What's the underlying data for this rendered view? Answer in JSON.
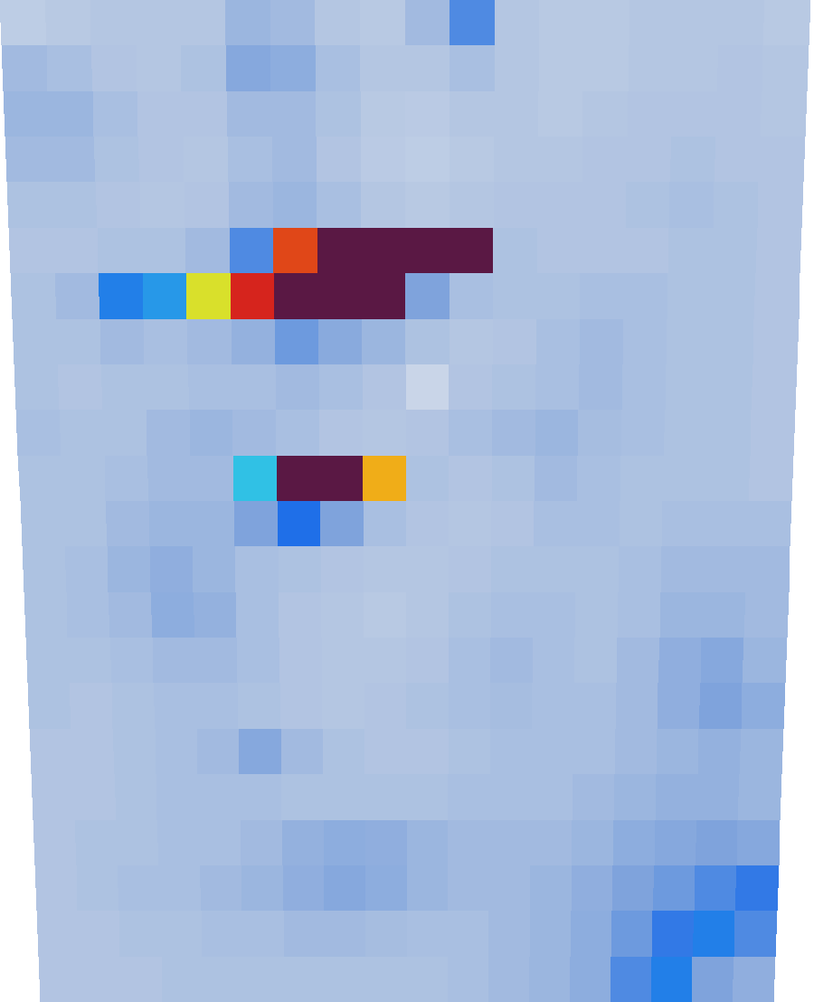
{
  "chart_data": {
    "type": "heatmap",
    "tick_labels": false,
    "value_range": [
      0,
      1
    ],
    "cells": [
      [
        0.12,
        0.14,
        0.15,
        0.15,
        0.15,
        0.22,
        0.2,
        0.15,
        0.14,
        0.2,
        0.35,
        0.15,
        0.14,
        0.14,
        0.15,
        0.15,
        0.15,
        0.14
      ],
      [
        0.2,
        0.18,
        0.16,
        0.15,
        0.17,
        0.28,
        0.26,
        0.18,
        0.15,
        0.15,
        0.18,
        0.15,
        0.14,
        0.14,
        0.15,
        0.15,
        0.16,
        0.15
      ],
      [
        0.22,
        0.22,
        0.18,
        0.16,
        0.16,
        0.2,
        0.2,
        0.17,
        0.14,
        0.13,
        0.15,
        0.15,
        0.14,
        0.15,
        0.16,
        0.16,
        0.16,
        0.15
      ],
      [
        0.2,
        0.2,
        0.17,
        0.16,
        0.15,
        0.18,
        0.2,
        0.16,
        0.13,
        0.12,
        0.14,
        0.15,
        0.15,
        0.16,
        0.16,
        0.17,
        0.16,
        0.16
      ],
      [
        0.17,
        0.17,
        0.16,
        0.15,
        0.16,
        0.2,
        0.22,
        0.18,
        0.15,
        0.14,
        0.15,
        0.16,
        0.16,
        0.16,
        0.17,
        0.18,
        0.17,
        0.16
      ],
      [
        0.16,
        0.16,
        0.17,
        0.17,
        0.2,
        0.35,
        0.85,
        1.0,
        1.0,
        1.0,
        1.0,
        0.17,
        0.16,
        0.16,
        0.16,
        0.17,
        0.17,
        0.16
      ],
      [
        0.17,
        0.2,
        0.42,
        0.45,
        0.68,
        0.88,
        1.0,
        1.0,
        1.0,
        0.3,
        0.18,
        0.17,
        0.17,
        0.18,
        0.18,
        0.17,
        0.17,
        0.16
      ],
      [
        0.17,
        0.17,
        0.2,
        0.18,
        0.2,
        0.24,
        0.32,
        0.27,
        0.22,
        0.17,
        0.15,
        0.16,
        0.18,
        0.2,
        0.18,
        0.17,
        0.17,
        0.16
      ],
      [
        0.17,
        0.16,
        0.17,
        0.17,
        0.18,
        0.18,
        0.2,
        0.18,
        0.16,
        0.08,
        0.16,
        0.17,
        0.18,
        0.2,
        0.18,
        0.17,
        0.17,
        0.16
      ],
      [
        0.18,
        0.17,
        0.17,
        0.2,
        0.22,
        0.2,
        0.18,
        0.16,
        0.15,
        0.16,
        0.18,
        0.2,
        0.22,
        0.19,
        0.18,
        0.17,
        0.17,
        0.16
      ],
      [
        0.17,
        0.17,
        0.18,
        0.2,
        0.2,
        0.5,
        1.0,
        1.0,
        0.75,
        0.17,
        0.16,
        0.17,
        0.2,
        0.18,
        0.17,
        0.17,
        0.17,
        0.16
      ],
      [
        0.17,
        0.17,
        0.2,
        0.22,
        0.22,
        0.3,
        0.4,
        0.3,
        0.18,
        0.16,
        0.15,
        0.16,
        0.18,
        0.18,
        0.17,
        0.18,
        0.18,
        0.18
      ],
      [
        0.17,
        0.18,
        0.22,
        0.25,
        0.22,
        0.18,
        0.17,
        0.16,
        0.15,
        0.15,
        0.16,
        0.17,
        0.17,
        0.17,
        0.18,
        0.2,
        0.2,
        0.2
      ],
      [
        0.17,
        0.18,
        0.2,
        0.26,
        0.24,
        0.18,
        0.16,
        0.15,
        0.14,
        0.15,
        0.17,
        0.18,
        0.18,
        0.17,
        0.18,
        0.22,
        0.22,
        0.2
      ],
      [
        0.17,
        0.17,
        0.18,
        0.2,
        0.2,
        0.18,
        0.16,
        0.15,
        0.15,
        0.16,
        0.18,
        0.2,
        0.18,
        0.17,
        0.2,
        0.25,
        0.28,
        0.22
      ],
      [
        0.17,
        0.16,
        0.17,
        0.18,
        0.18,
        0.17,
        0.16,
        0.15,
        0.16,
        0.17,
        0.18,
        0.19,
        0.18,
        0.18,
        0.2,
        0.25,
        0.3,
        0.26
      ],
      [
        0.16,
        0.16,
        0.17,
        0.18,
        0.2,
        0.28,
        0.2,
        0.17,
        0.16,
        0.16,
        0.17,
        0.18,
        0.18,
        0.18,
        0.2,
        0.22,
        0.24,
        0.22
      ],
      [
        0.16,
        0.16,
        0.17,
        0.18,
        0.18,
        0.18,
        0.17,
        0.17,
        0.17,
        0.17,
        0.18,
        0.18,
        0.18,
        0.2,
        0.22,
        0.24,
        0.24,
        0.22
      ],
      [
        0.16,
        0.17,
        0.17,
        0.18,
        0.18,
        0.2,
        0.24,
        0.26,
        0.25,
        0.22,
        0.2,
        0.2,
        0.2,
        0.22,
        0.26,
        0.28,
        0.3,
        0.28
      ],
      [
        0.16,
        0.17,
        0.18,
        0.18,
        0.2,
        0.22,
        0.25,
        0.28,
        0.26,
        0.22,
        0.2,
        0.2,
        0.22,
        0.25,
        0.3,
        0.32,
        0.35,
        0.38
      ],
      [
        0.16,
        0.16,
        0.17,
        0.17,
        0.18,
        0.18,
        0.2,
        0.2,
        0.19,
        0.18,
        0.18,
        0.2,
        0.22,
        0.26,
        0.32,
        0.38,
        0.42,
        0.35
      ],
      [
        0.16,
        0.16,
        0.16,
        0.17,
        0.17,
        0.17,
        0.17,
        0.17,
        0.17,
        0.17,
        0.18,
        0.2,
        0.22,
        0.26,
        0.35,
        0.42,
        0.3,
        0.25
      ]
    ]
  }
}
